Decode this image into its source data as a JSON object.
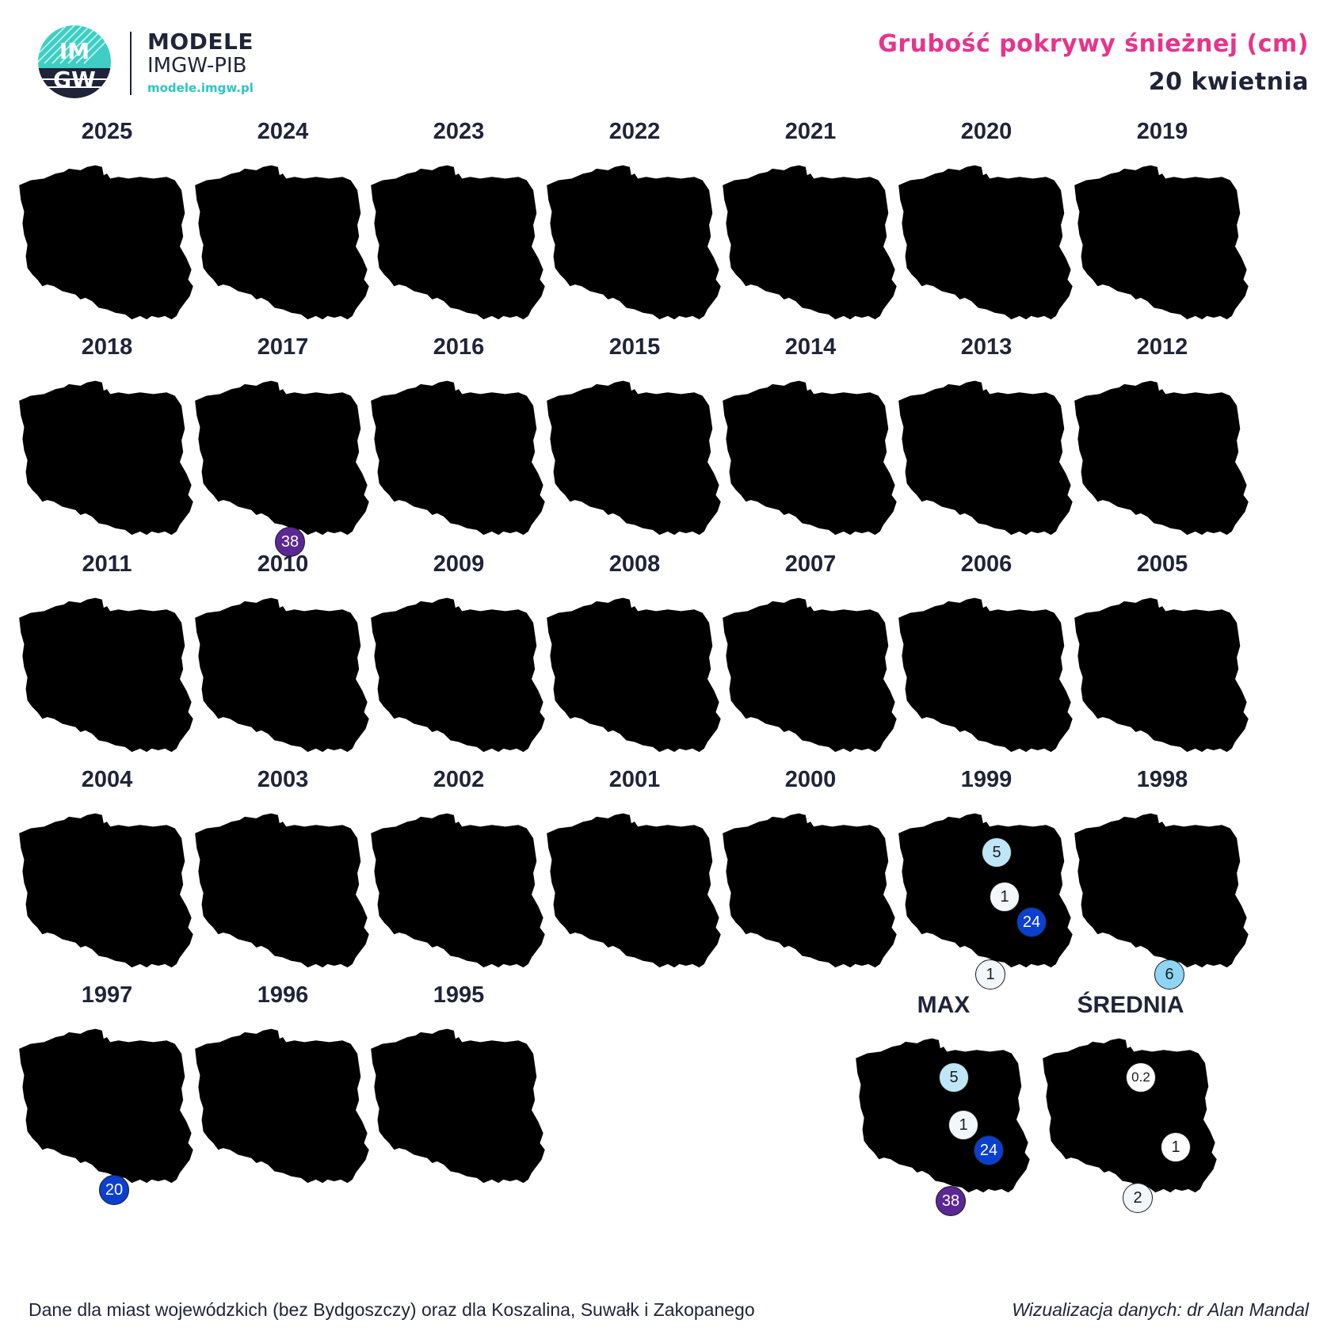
{
  "header": {
    "brand_title": "MODELE",
    "brand_subtitle": "IMGW-PIB",
    "brand_url": "modele.imgw.pl",
    "logo_text_top": "IM",
    "logo_text_bottom": "GW",
    "title": "Grubość pokrywy śnieżnej (cm)",
    "date": "20 kwietnia"
  },
  "years": [
    {
      "label": "2025",
      "points": []
    },
    {
      "label": "2024",
      "points": []
    },
    {
      "label": "2023",
      "points": []
    },
    {
      "label": "2022",
      "points": []
    },
    {
      "label": "2021",
      "points": []
    },
    {
      "label": "2020",
      "points": []
    },
    {
      "label": "2019",
      "points": []
    },
    {
      "label": "2018",
      "points": []
    },
    {
      "label": "2017",
      "points": [
        {
          "city": "Zakopane",
          "value": "38"
        }
      ]
    },
    {
      "label": "2016",
      "points": []
    },
    {
      "label": "2015",
      "points": []
    },
    {
      "label": "2014",
      "points": []
    },
    {
      "label": "2013",
      "points": []
    },
    {
      "label": "2012",
      "points": []
    },
    {
      "label": "2011",
      "points": []
    },
    {
      "label": "2010",
      "points": []
    },
    {
      "label": "2009",
      "points": []
    },
    {
      "label": "2008",
      "points": []
    },
    {
      "label": "2007",
      "points": []
    },
    {
      "label": "2006",
      "points": []
    },
    {
      "label": "2005",
      "points": []
    },
    {
      "label": "2004",
      "points": []
    },
    {
      "label": "2003",
      "points": []
    },
    {
      "label": "2002",
      "points": []
    },
    {
      "label": "2001",
      "points": []
    },
    {
      "label": "2000",
      "points": []
    },
    {
      "label": "1999",
      "points": [
        {
          "city": "Olsztyn",
          "value": "5"
        },
        {
          "city": "Warszawa",
          "value": "1"
        },
        {
          "city": "Lublin",
          "value": "24"
        },
        {
          "city": "Kraków",
          "value": "1"
        }
      ]
    },
    {
      "label": "1998",
      "points": [
        {
          "city": "Rzeszów",
          "value": "6"
        }
      ]
    },
    {
      "label": "1997",
      "points": [
        {
          "city": "Zakopane",
          "value": "20"
        }
      ]
    },
    {
      "label": "1996",
      "points": []
    },
    {
      "label": "1995",
      "points": []
    }
  ],
  "summary": {
    "max": {
      "label": "MAX",
      "points": [
        {
          "city": "Olsztyn",
          "value": "5"
        },
        {
          "city": "Warszawa",
          "value": "1"
        },
        {
          "city": "Lublin",
          "value": "24"
        },
        {
          "city": "Zakopane",
          "value": "38"
        }
      ]
    },
    "mean": {
      "label": "ŚREDNIA",
      "points": [
        {
          "city": "Olsztyn",
          "value": "0.2"
        },
        {
          "city": "Lublin",
          "value": "1"
        },
        {
          "city": "Zakopane",
          "value": "2"
        }
      ]
    }
  },
  "legend_colors": {
    "lt1": "#f2f7fb",
    "1_5": "#bfe6f7",
    "5_10": "#8ed5f5",
    "10_20": "#3a8fe6",
    "20_30": "#0b3fd0",
    "30_50": "#5b2795"
  },
  "footer": {
    "note": "Dane dla miast wojewódzkich (bez Bydgoszczy) oraz dla Koszalina, Suwałk i Zakopanego",
    "credit": "Wizualizacja danych: dr Alan Mandal"
  }
}
